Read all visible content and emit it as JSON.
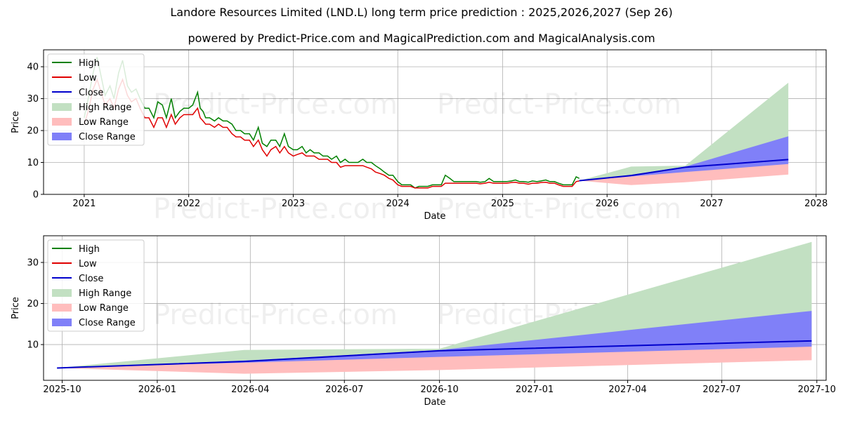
{
  "title": "Landore Resources Limited (LND.L) long term price prediction : 2025,2026,2027 (Sep 26)",
  "subtitle": "powered by Predict-Price.com and MagicalPrediction.com and MagicalAnalysis.com",
  "watermark": "Predict-Price.com",
  "colors": {
    "high": "#008000",
    "low": "#e00000",
    "close": "#0000cc",
    "high_range": "#c2e0c2",
    "low_range": "#ffbdbd",
    "close_range": "#8080f8",
    "grid": "#b0b0b0"
  },
  "legend": [
    {
      "label": "High",
      "kind": "line",
      "color": "#008000"
    },
    {
      "label": "Low",
      "kind": "line",
      "color": "#e00000"
    },
    {
      "label": "Close",
      "kind": "line",
      "color": "#0000cc"
    },
    {
      "label": "High Range",
      "kind": "patch",
      "color": "#c2e0c2"
    },
    {
      "label": "Low Range",
      "kind": "patch",
      "color": "#ffbdbd"
    },
    {
      "label": "Close Range",
      "kind": "patch",
      "color": "#8080f8"
    }
  ],
  "chart_data": [
    {
      "type": "line",
      "xlabel": "Date",
      "ylabel": "Price",
      "xlim": [
        "2020-08-12",
        "2028-02-05"
      ],
      "ylim": [
        0,
        45.3
      ],
      "xticks": [
        "2021",
        "2022",
        "2023",
        "2024",
        "2025",
        "2026",
        "2027",
        "2028"
      ],
      "yticks": [
        0,
        10,
        20,
        30,
        40
      ],
      "grid": true,
      "legend_position": "top-left",
      "history": {
        "dates": [
          "2021-01-01",
          "2021-01-15",
          "2021-02-01",
          "2021-02-15",
          "2021-03-01",
          "2021-03-15",
          "2021-04-01",
          "2021-04-15",
          "2021-05-01",
          "2021-05-15",
          "2021-06-01",
          "2021-06-15",
          "2021-07-01",
          "2021-07-15",
          "2021-08-01",
          "2021-08-15",
          "2021-09-01",
          "2021-09-15",
          "2021-10-01",
          "2021-10-15",
          "2021-11-01",
          "2021-11-15",
          "2021-12-01",
          "2021-12-15",
          "2022-01-01",
          "2022-01-15",
          "2022-02-01",
          "2022-02-10",
          "2022-02-20",
          "2022-03-01",
          "2022-03-15",
          "2022-04-01",
          "2022-04-15",
          "2022-05-01",
          "2022-05-15",
          "2022-06-01",
          "2022-06-15",
          "2022-07-01",
          "2022-07-15",
          "2022-08-01",
          "2022-08-15",
          "2022-09-01",
          "2022-09-15",
          "2022-10-01",
          "2022-10-15",
          "2022-11-01",
          "2022-11-15",
          "2022-12-01",
          "2022-12-15",
          "2023-01-01",
          "2023-01-15",
          "2023-02-01",
          "2023-02-15",
          "2023-03-01",
          "2023-03-15",
          "2023-04-01",
          "2023-04-15",
          "2023-05-01",
          "2023-05-15",
          "2023-06-01",
          "2023-06-15",
          "2023-07-01",
          "2023-07-15",
          "2023-08-01",
          "2023-08-15",
          "2023-09-01",
          "2023-09-15",
          "2023-10-01",
          "2023-10-15",
          "2023-11-01",
          "2023-11-15",
          "2023-12-01",
          "2023-12-15",
          "2024-01-01",
          "2024-01-15",
          "2024-02-01",
          "2024-02-15",
          "2024-03-01",
          "2024-03-15",
          "2024-04-01",
          "2024-04-15",
          "2024-05-01",
          "2024-05-15",
          "2024-06-01",
          "2024-06-15",
          "2024-07-01",
          "2024-07-15",
          "2024-08-01",
          "2024-08-15",
          "2024-09-01",
          "2024-09-15",
          "2024-10-01",
          "2024-10-15",
          "2024-11-01",
          "2024-11-15",
          "2024-12-01",
          "2024-12-15",
          "2025-01-01",
          "2025-01-15",
          "2025-02-01",
          "2025-02-15",
          "2025-03-01",
          "2025-03-15",
          "2025-04-01",
          "2025-04-15",
          "2025-05-01",
          "2025-05-15",
          "2025-06-01",
          "2025-06-15",
          "2025-07-01",
          "2025-07-15",
          "2025-08-01",
          "2025-08-15",
          "2025-09-01",
          "2025-09-15",
          "2025-09-26"
        ],
        "high": [
          24,
          30,
          38,
          43,
          37,
          31,
          34,
          30,
          38,
          42,
          34,
          32,
          33,
          30,
          27,
          27,
          24,
          29,
          28,
          24,
          30,
          24,
          26,
          27,
          27,
          28,
          32,
          27,
          26,
          24,
          24,
          23,
          24,
          23,
          23,
          22,
          20,
          20,
          19,
          19,
          17,
          21,
          16,
          15,
          17,
          17,
          15,
          19,
          15,
          14,
          14,
          15,
          13,
          14,
          13,
          13,
          12,
          12,
          11,
          12,
          10,
          11,
          10,
          10,
          10,
          11,
          10,
          10,
          9,
          8,
          7,
          6,
          6,
          4,
          3,
          3,
          3,
          2,
          2.5,
          2.5,
          2.5,
          3,
          3,
          3,
          6,
          5,
          4,
          4,
          4,
          4,
          4,
          4,
          3.8,
          4,
          5,
          4,
          4,
          4,
          4,
          4.2,
          4.5,
          4,
          4,
          3.8,
          4.2,
          4,
          4.2,
          4.5,
          4,
          4,
          3.5,
          3,
          3,
          3,
          5.5,
          5
        ],
        "low": [
          22,
          26,
          33,
          36,
          32,
          28,
          30,
          27,
          33,
          36,
          31,
          29,
          30,
          27,
          24,
          24,
          21,
          24,
          24,
          21,
          25,
          22,
          24,
          25,
          25,
          25,
          27,
          24,
          23,
          22,
          22,
          21,
          22,
          21,
          21,
          19,
          18,
          18,
          17,
          17,
          15,
          17,
          14,
          12,
          14,
          15,
          13,
          15,
          13,
          12,
          12.5,
          13,
          12,
          12,
          12,
          11,
          11,
          11,
          10,
          10,
          8.5,
          9,
          9,
          9,
          9,
          9,
          8.5,
          8,
          7,
          6.5,
          6,
          5,
          4.5,
          3,
          2.5,
          2.5,
          2.5,
          2,
          2,
          2,
          2,
          2.5,
          2.5,
          2.5,
          3.5,
          3.5,
          3.5,
          3.5,
          3.5,
          3.5,
          3.5,
          3.5,
          3.3,
          3.5,
          3.8,
          3.5,
          3.5,
          3.5,
          3.5,
          3.7,
          3.8,
          3.5,
          3.5,
          3.2,
          3.5,
          3.5,
          3.7,
          3.8,
          3.5,
          3.5,
          3,
          2.5,
          2.5,
          2.5,
          4,
          4.2
        ]
      },
      "forecast": {
        "dates": [
          "2025-09-26",
          "2026-03-26",
          "2026-10-01",
          "2027-09-26"
        ],
        "close": [
          4.3,
          5.9,
          8.5,
          10.9
        ],
        "close_range_upper": [
          4.3,
          6.1,
          8.7,
          18.2
        ],
        "close_range_lower": [
          4.3,
          5.6,
          7.0,
          9.5
        ],
        "high_range_upper": [
          4.3,
          8.7,
          9.0,
          35.0
        ],
        "low_range_lower": [
          4.3,
          2.9,
          3.8,
          6.2
        ]
      }
    },
    {
      "type": "area",
      "xlabel": "Date",
      "ylabel": "Price",
      "xlim": [
        "2025-09-13",
        "2027-10-10"
      ],
      "ylim": [
        1.3,
        36.5
      ],
      "xticks": [
        "2025-10",
        "2026-01",
        "2026-04",
        "2026-07",
        "2026-10",
        "2027-01",
        "2027-04",
        "2027-07",
        "2027-10"
      ],
      "yticks": [
        10,
        20,
        30
      ],
      "grid": true,
      "legend_position": "top-left",
      "forecast": {
        "dates": [
          "2025-09-26",
          "2026-03-26",
          "2026-10-01",
          "2027-09-26"
        ],
        "close": [
          4.3,
          5.9,
          8.5,
          10.9
        ],
        "close_range_upper": [
          4.3,
          6.1,
          8.7,
          18.2
        ],
        "close_range_lower": [
          4.3,
          5.6,
          7.0,
          9.5
        ],
        "high_range_upper": [
          4.3,
          8.7,
          9.0,
          35.0
        ],
        "low_range_lower": [
          4.3,
          2.9,
          3.8,
          6.2
        ]
      }
    }
  ]
}
